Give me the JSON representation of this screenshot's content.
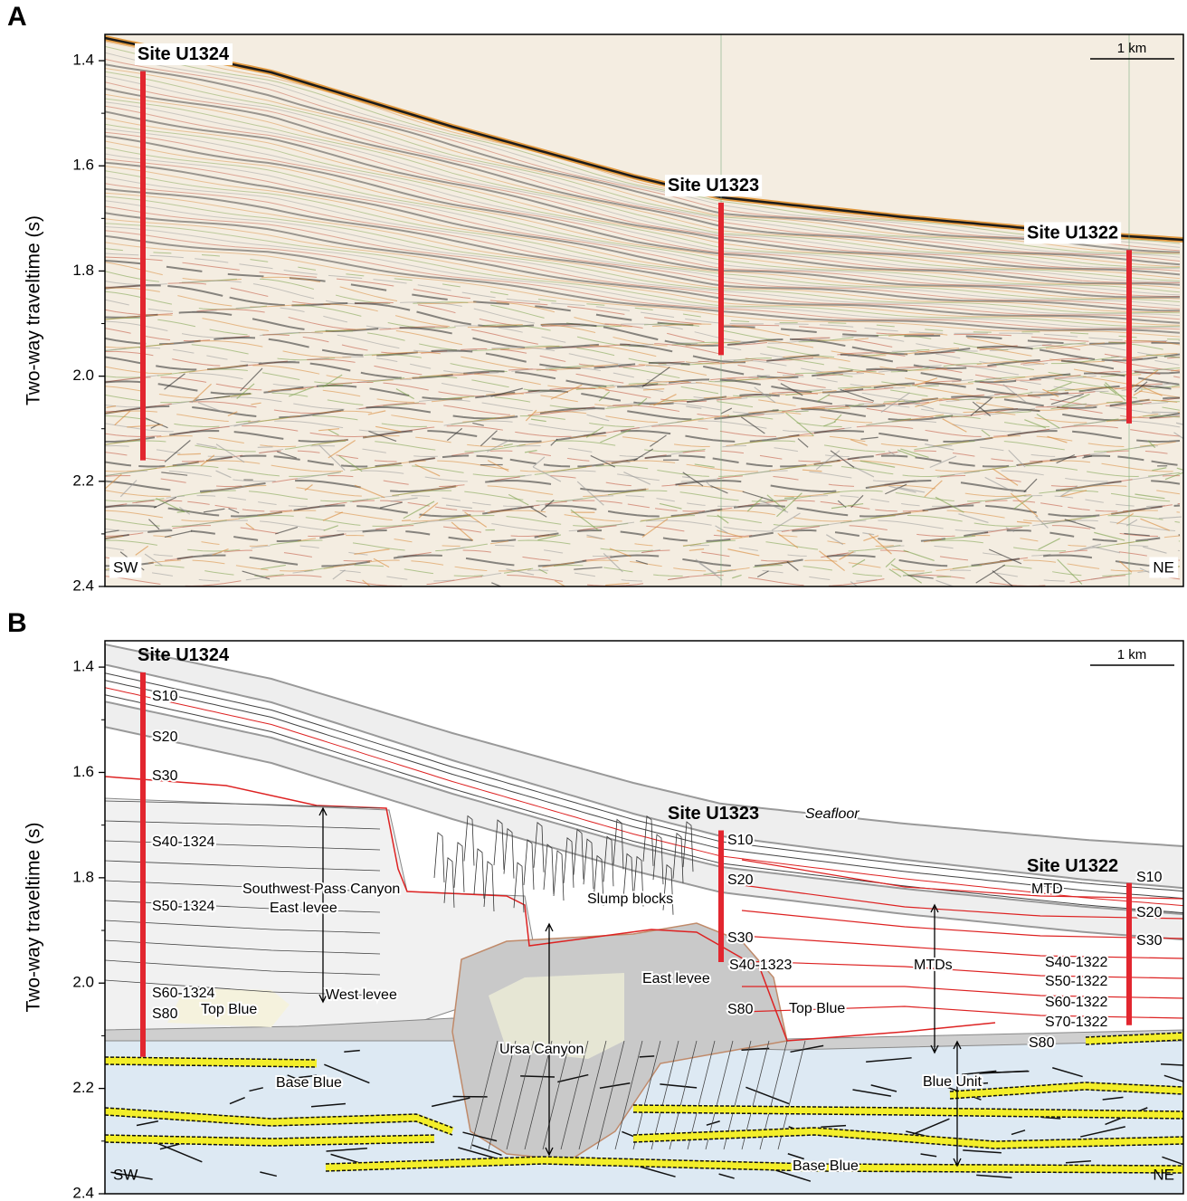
{
  "panels": [
    {
      "label": "A",
      "axis_label": "Two-way traveltime (s)",
      "ylim": [
        1.35,
        2.4
      ],
      "yticks": [
        1.4,
        1.6,
        1.8,
        {
          "value": 2,
          "label": "2.0"
        },
        2.2,
        2.4
      ],
      "sites": [
        {
          "name": "Site U1324",
          "top": 1.42,
          "bottom": 2.16
        },
        {
          "name": "Site U1323",
          "top": 1.67,
          "bottom": 1.96
        },
        {
          "name": "Site U1322",
          "top": 1.76,
          "bottom": 2.09
        }
      ],
      "scale_bar": "1 km",
      "left_label": "SW",
      "right_label": "NE"
    },
    {
      "label": "B",
      "axis_label": "Two-way traveltime (s)",
      "ylim": [
        1.35,
        2.4
      ],
      "yticks": [
        1.4,
        1.6,
        1.8,
        {
          "value": 2,
          "label": "2.0"
        },
        2.2,
        2.4
      ],
      "sites": [
        {
          "name": "Site U1324",
          "top": 1.41,
          "bottom": 2.14
        },
        {
          "name": "Site U1323",
          "top": 1.71,
          "bottom": 1.96
        },
        {
          "name": "Site U1322",
          "top": 1.81,
          "bottom": 2.08
        }
      ],
      "scale_bar": "1 km",
      "left_label": "SW",
      "right_label": "NE",
      "annotations": [
        "S10",
        "S20",
        "S30",
        "S40-1324",
        "S50-1324",
        "S60-1324",
        "S80",
        "Top Blue",
        "Base Blue",
        "Southwest Pass Canyon",
        "East levee",
        "West levee",
        "Ursa Canyon",
        "East levee",
        "Slump blocks",
        "Seafloor",
        "S10",
        "S20",
        "S30",
        "S40-1323",
        "S80",
        "Top Blue",
        "MTD",
        "MTDs",
        "Blue Unit",
        "Base Blue",
        "S10",
        "S20",
        "S30",
        "S40-1322",
        "S50-1322",
        "S60-1322",
        "S70-1322",
        "S80"
      ]
    }
  ]
}
